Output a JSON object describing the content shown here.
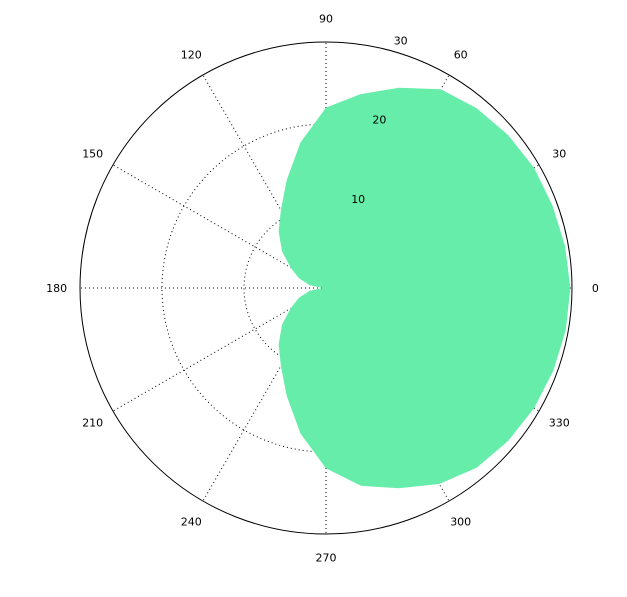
{
  "chart_data": {
    "type": "polar-area",
    "title": "",
    "angle_unit": "degrees",
    "angle_ticks": [
      "0",
      "30",
      "60",
      "90",
      "120",
      "150",
      "180",
      "210",
      "240",
      "270",
      "300",
      "330"
    ],
    "radial_ticks": [
      "10",
      "20",
      "30"
    ],
    "rlim": [
      0,
      30
    ],
    "grid": true,
    "fill_color": "#67edaa",
    "series": [
      {
        "theta": [
          0,
          10,
          20,
          30,
          40,
          50,
          60,
          70,
          80,
          90,
          100,
          110,
          120,
          130,
          140,
          150,
          160,
          170,
          180,
          190,
          200,
          210,
          220,
          230,
          240,
          250,
          260,
          270,
          280,
          290,
          300,
          310,
          320,
          330,
          340,
          350,
          360
        ],
        "r": [
          29.8,
          29.6,
          29.4,
          29.3,
          29.0,
          28.6,
          28.0,
          26.0,
          24.0,
          22.0,
          18.0,
          14.0,
          11.0,
          9.0,
          7.0,
          5.0,
          3.5,
          2.0,
          0.4,
          2.0,
          3.5,
          5.0,
          7.0,
          9.0,
          11.0,
          14.0,
          18.0,
          22.0,
          24.5,
          26.0,
          27.6,
          28.6,
          29.0,
          29.3,
          29.5,
          29.7,
          29.8
        ]
      }
    ]
  }
}
